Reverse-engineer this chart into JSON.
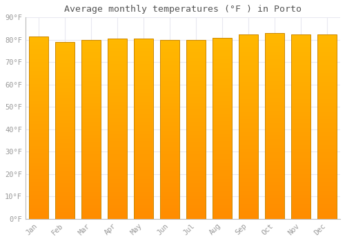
{
  "title": "Average monthly temperatures (°F ) in Porto",
  "months": [
    "Jan",
    "Feb",
    "Mar",
    "Apr",
    "May",
    "Jun",
    "Jul",
    "Aug",
    "Sep",
    "Oct",
    "Nov",
    "Dec"
  ],
  "values": [
    81.5,
    79.0,
    80.0,
    80.5,
    80.5,
    80.0,
    80.0,
    81.0,
    82.5,
    83.0,
    82.5,
    82.5
  ],
  "bar_color_top": "#FFB800",
  "bar_color_bottom": "#FF8C00",
  "bar_edge_color": "#CC8800",
  "background_color": "#FFFFFF",
  "plot_bg_color": "#FFFFFF",
  "grid_color": "#E8E8F0",
  "tick_label_color": "#999999",
  "title_color": "#555555",
  "ylim": [
    0,
    90
  ],
  "yticks": [
    0,
    10,
    20,
    30,
    40,
    50,
    60,
    70,
    80,
    90
  ],
  "ytick_labels": [
    "0°F",
    "10°F",
    "20°F",
    "30°F",
    "40°F",
    "50°F",
    "60°F",
    "70°F",
    "80°F",
    "90°F"
  ],
  "bar_width": 0.75,
  "gradient_steps": 100
}
